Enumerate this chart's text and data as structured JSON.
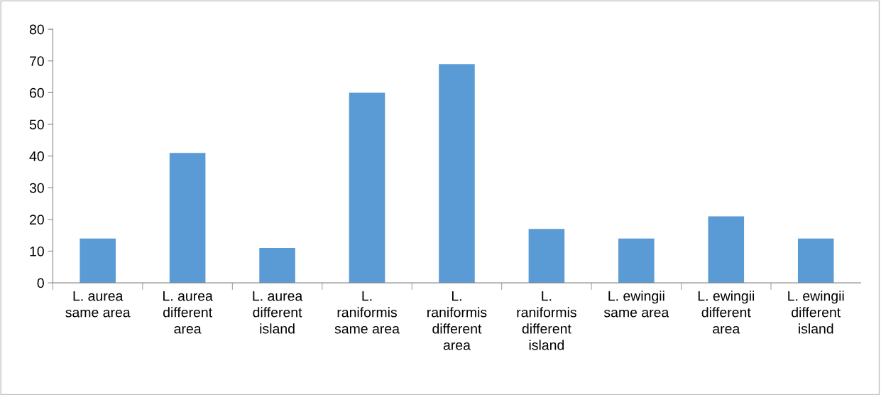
{
  "chart_data": {
    "type": "bar",
    "categories": [
      "L. aurea\nsame area",
      "L. aurea\ndifferent\narea",
      "L. aurea\ndifferent\nisland",
      "L.\nraniformis\nsame area",
      "L.\nraniformis\ndifferent\narea",
      "L.\nraniformis\ndifferent\nisland",
      "L. ewingii\nsame area",
      "L. ewingii\ndifferent\narea",
      "L. ewingii\ndifferent\nisland"
    ],
    "values": [
      14,
      41,
      11,
      60,
      69,
      17,
      14,
      21,
      14
    ],
    "color": "#5b9bd5",
    "ylim": [
      0,
      80
    ],
    "yticks": [
      0,
      10,
      20,
      30,
      40,
      50,
      60,
      70,
      80
    ],
    "grid": false,
    "legend": false
  }
}
